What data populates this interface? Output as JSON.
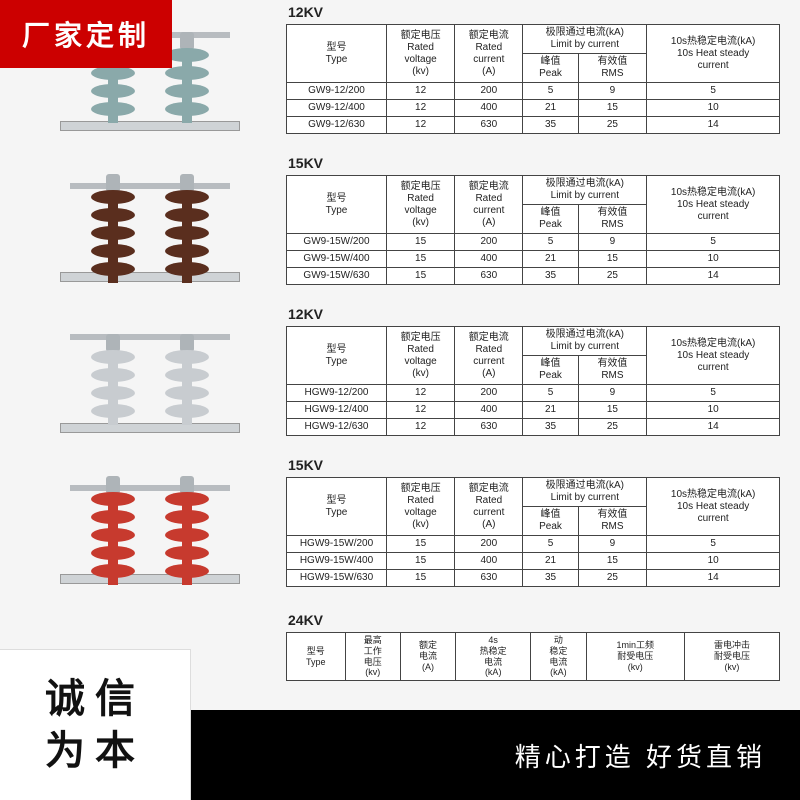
{
  "badge_top": "厂家定制",
  "footer_left_line1": "诚信",
  "footer_left_line2": "为本",
  "footer_right": "精心打造 好货直销",
  "shared_headers": {
    "type": "型号\nType",
    "voltage": "额定电压\nRated\nvoltage\n(kv)",
    "current": "额定电流\nRated\ncurrent\n(A)",
    "limit_group": "极限通过电流(kA)\nLimit by current",
    "peak": "峰值\nPeak",
    "rms": "有效值\nRMS",
    "heat": "10s热稳定电流(kA)\n10s Heat steady\ncurrent"
  },
  "tables": [
    {
      "title": "12KV",
      "insulator_color": "teal",
      "rows": [
        [
          "GW9-12/200",
          "12",
          "200",
          "5",
          "9",
          "5"
        ],
        [
          "GW9-12/400",
          "12",
          "400",
          "21",
          "15",
          "10"
        ],
        [
          "GW9-12/630",
          "12",
          "630",
          "35",
          "25",
          "14"
        ]
      ]
    },
    {
      "title": "15KV",
      "insulator_color": "brown",
      "rows": [
        [
          "GW9-15W/200",
          "15",
          "200",
          "5",
          "9",
          "5"
        ],
        [
          "GW9-15W/400",
          "15",
          "400",
          "21",
          "15",
          "10"
        ],
        [
          "GW9-15W/630",
          "15",
          "630",
          "35",
          "25",
          "14"
        ]
      ]
    },
    {
      "title": "12KV",
      "insulator_color": "grey",
      "rows": [
        [
          "HGW9-12/200",
          "12",
          "200",
          "5",
          "9",
          "5"
        ],
        [
          "HGW9-12/400",
          "12",
          "400",
          "21",
          "15",
          "10"
        ],
        [
          "HGW9-12/630",
          "12",
          "630",
          "35",
          "25",
          "14"
        ]
      ]
    },
    {
      "title": "15KV",
      "insulator_color": "red",
      "rows": [
        [
          "HGW9-15W/200",
          "15",
          "200",
          "5",
          "9",
          "5"
        ],
        [
          "HGW9-15W/400",
          "15",
          "400",
          "21",
          "15",
          "10"
        ],
        [
          "HGW9-15W/630",
          "15",
          "630",
          "35",
          "25",
          "14"
        ]
      ]
    }
  ],
  "table24": {
    "title": "24KV",
    "headers": [
      "型号\nType",
      "最高\n工作\n电压\n(kv)",
      "额定\n电流\n(A)",
      "4s\n热稳定\n电流\n(kA)",
      "动\n稳定\n电流\n(kA)",
      "1min工频\n耐受电压\n(kv)",
      "雷电冲击\n耐受电压\n(kv)"
    ]
  },
  "colors": {
    "badge_bg": "#cc0000",
    "footer_bg": "#000000",
    "border": "#444444"
  }
}
